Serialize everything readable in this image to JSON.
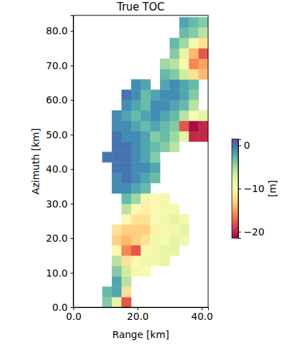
{
  "chart_data": {
    "type": "heatmap",
    "title": "True TOC",
    "x_label": "Range [km]",
    "y_label": "Azimuth [km]",
    "color": "Spectral",
    "xlim": [
      0,
      42
    ],
    "ylim": [
      0,
      84.5
    ],
    "xticks": [
      {
        "value": 0,
        "label": "0.0"
      },
      {
        "value": 20,
        "label": "20.0"
      },
      {
        "value": 40,
        "label": "40.0"
      }
    ],
    "yticks": [
      {
        "value": 0,
        "label": "0.0"
      },
      {
        "value": 10,
        "label": "10.0"
      },
      {
        "value": 20,
        "label": "20.0"
      },
      {
        "value": 30,
        "label": "30.0"
      },
      {
        "value": 40,
        "label": "40.0"
      },
      {
        "value": 50,
        "label": "50.0"
      },
      {
        "value": 60,
        "label": "60.0"
      },
      {
        "value": 70,
        "label": "70.0"
      },
      {
        "value": 80,
        "label": "80.0"
      }
    ],
    "x": [
      1.5,
      4.5,
      7.5,
      10.5,
      13.5,
      16.5,
      19.5,
      22.5,
      25.5,
      28.5,
      31.5,
      34.5,
      37.5,
      40.5
    ],
    "y": [
      1.5,
      4.5,
      7.5,
      10.5,
      13.5,
      16.5,
      19.5,
      22.5,
      25.5,
      28.5,
      31.5,
      34.5,
      37.5,
      40.5,
      43.5,
      46.5,
      49.5,
      52.5,
      55.5,
      58.5,
      61.5,
      64.5,
      67.5,
      70.5,
      73.5,
      76.5,
      79.5,
      82.5
    ],
    "values": [
      [
        null,
        null,
        null,
        -4,
        -8,
        -18,
        null,
        null,
        null,
        null,
        null,
        null,
        null,
        null
      ],
      [
        null,
        null,
        null,
        -3,
        -2,
        -12,
        null,
        null,
        null,
        null,
        null,
        null,
        null,
        null
      ],
      [
        null,
        null,
        null,
        null,
        -2,
        -6,
        null,
        null,
        null,
        null,
        null,
        null,
        null,
        null
      ],
      [
        null,
        null,
        null,
        null,
        -4,
        -7,
        -9,
        -10,
        null,
        null,
        null,
        null,
        null,
        null
      ],
      [
        null,
        null,
        null,
        null,
        -6,
        -12,
        -10,
        -9,
        -9,
        -8,
        null,
        null,
        null,
        null
      ],
      [
        null,
        null,
        null,
        null,
        -10,
        -16,
        -18,
        -10,
        -9,
        -8,
        -8,
        null,
        null,
        null
      ],
      [
        null,
        null,
        null,
        null,
        -13,
        -14,
        -13,
        -12,
        -9,
        -9,
        -8,
        -9,
        null,
        null
      ],
      [
        null,
        null,
        null,
        null,
        -12,
        -13,
        -13,
        -13,
        -11,
        -9,
        -9,
        -8,
        null,
        null
      ],
      [
        null,
        null,
        null,
        null,
        null,
        -10,
        -12,
        -12,
        -10,
        -9,
        -8,
        -9,
        null,
        null
      ],
      [
        null,
        null,
        null,
        null,
        null,
        -6,
        -10,
        -11,
        -10,
        -9,
        -9,
        null,
        null,
        null
      ],
      [
        null,
        null,
        null,
        null,
        null,
        -3,
        -5,
        -9,
        -10,
        -9,
        null,
        null,
        null,
        null
      ],
      [
        null,
        null,
        null,
        null,
        -1,
        -1,
        -2,
        -3,
        null,
        null,
        null,
        null,
        null,
        null
      ],
      [
        null,
        null,
        null,
        null,
        -1,
        0,
        -1,
        -2,
        -3,
        null,
        null,
        null,
        null,
        null
      ],
      [
        null,
        null,
        null,
        null,
        0,
        0,
        -1,
        -1,
        -2,
        null,
        null,
        null,
        null,
        null
      ],
      [
        null,
        null,
        null,
        0,
        0,
        0,
        -1,
        -2,
        -4,
        null,
        null,
        null,
        null,
        null
      ],
      [
        null,
        null,
        null,
        null,
        0,
        0,
        -1,
        -2,
        -3,
        -4,
        -6,
        null,
        null,
        null
      ],
      [
        null,
        null,
        null,
        null,
        0,
        -1,
        -1,
        -2,
        -4,
        -3,
        -5,
        -8,
        -20,
        -20
      ],
      [
        null,
        null,
        null,
        null,
        -1,
        -1,
        -2,
        -3,
        -2,
        -3,
        -4,
        -18,
        -21,
        -20
      ],
      [
        null,
        null,
        null,
        null,
        -1,
        -2,
        -3,
        -2,
        -1,
        -2,
        -3,
        -6,
        -10,
        -8
      ],
      [
        null,
        null,
        null,
        null,
        null,
        -1,
        -2,
        -3,
        -1,
        -1,
        -2,
        -3,
        -6,
        null
      ],
      [
        null,
        null,
        null,
        null,
        null,
        0,
        -1,
        -3,
        -2,
        -1,
        -1,
        -2,
        -4,
        null
      ],
      [
        null,
        null,
        null,
        null,
        null,
        null,
        -1,
        -2,
        null,
        -2,
        -1,
        -2,
        -3,
        null
      ],
      [
        null,
        null,
        null,
        null,
        null,
        null,
        null,
        null,
        null,
        -3,
        -4,
        -7,
        -12,
        -14
      ],
      [
        null,
        null,
        null,
        null,
        null,
        null,
        null,
        null,
        null,
        -5,
        -6,
        -10,
        -16,
        -15
      ],
      [
        null,
        null,
        null,
        null,
        null,
        null,
        null,
        null,
        null,
        null,
        -4,
        -8,
        -14,
        -18
      ],
      [
        null,
        null,
        null,
        null,
        null,
        null,
        null,
        null,
        null,
        null,
        -3,
        -5,
        -9,
        -12
      ],
      [
        null,
        null,
        null,
        null,
        null,
        null,
        null,
        null,
        null,
        null,
        null,
        -3,
        -4,
        -6
      ],
      [
        null,
        null,
        null,
        null,
        null,
        null,
        null,
        null,
        null,
        null,
        null,
        -2,
        -3,
        -4
      ]
    ],
    "colorbar": {
      "label": "[m]",
      "range": [
        -21.5,
        1.5
      ],
      "ticks": [
        0,
        {
          "value": -10,
          "label": "−10"
        },
        {
          "value": -20,
          "label": "−20"
        }
      ]
    }
  }
}
